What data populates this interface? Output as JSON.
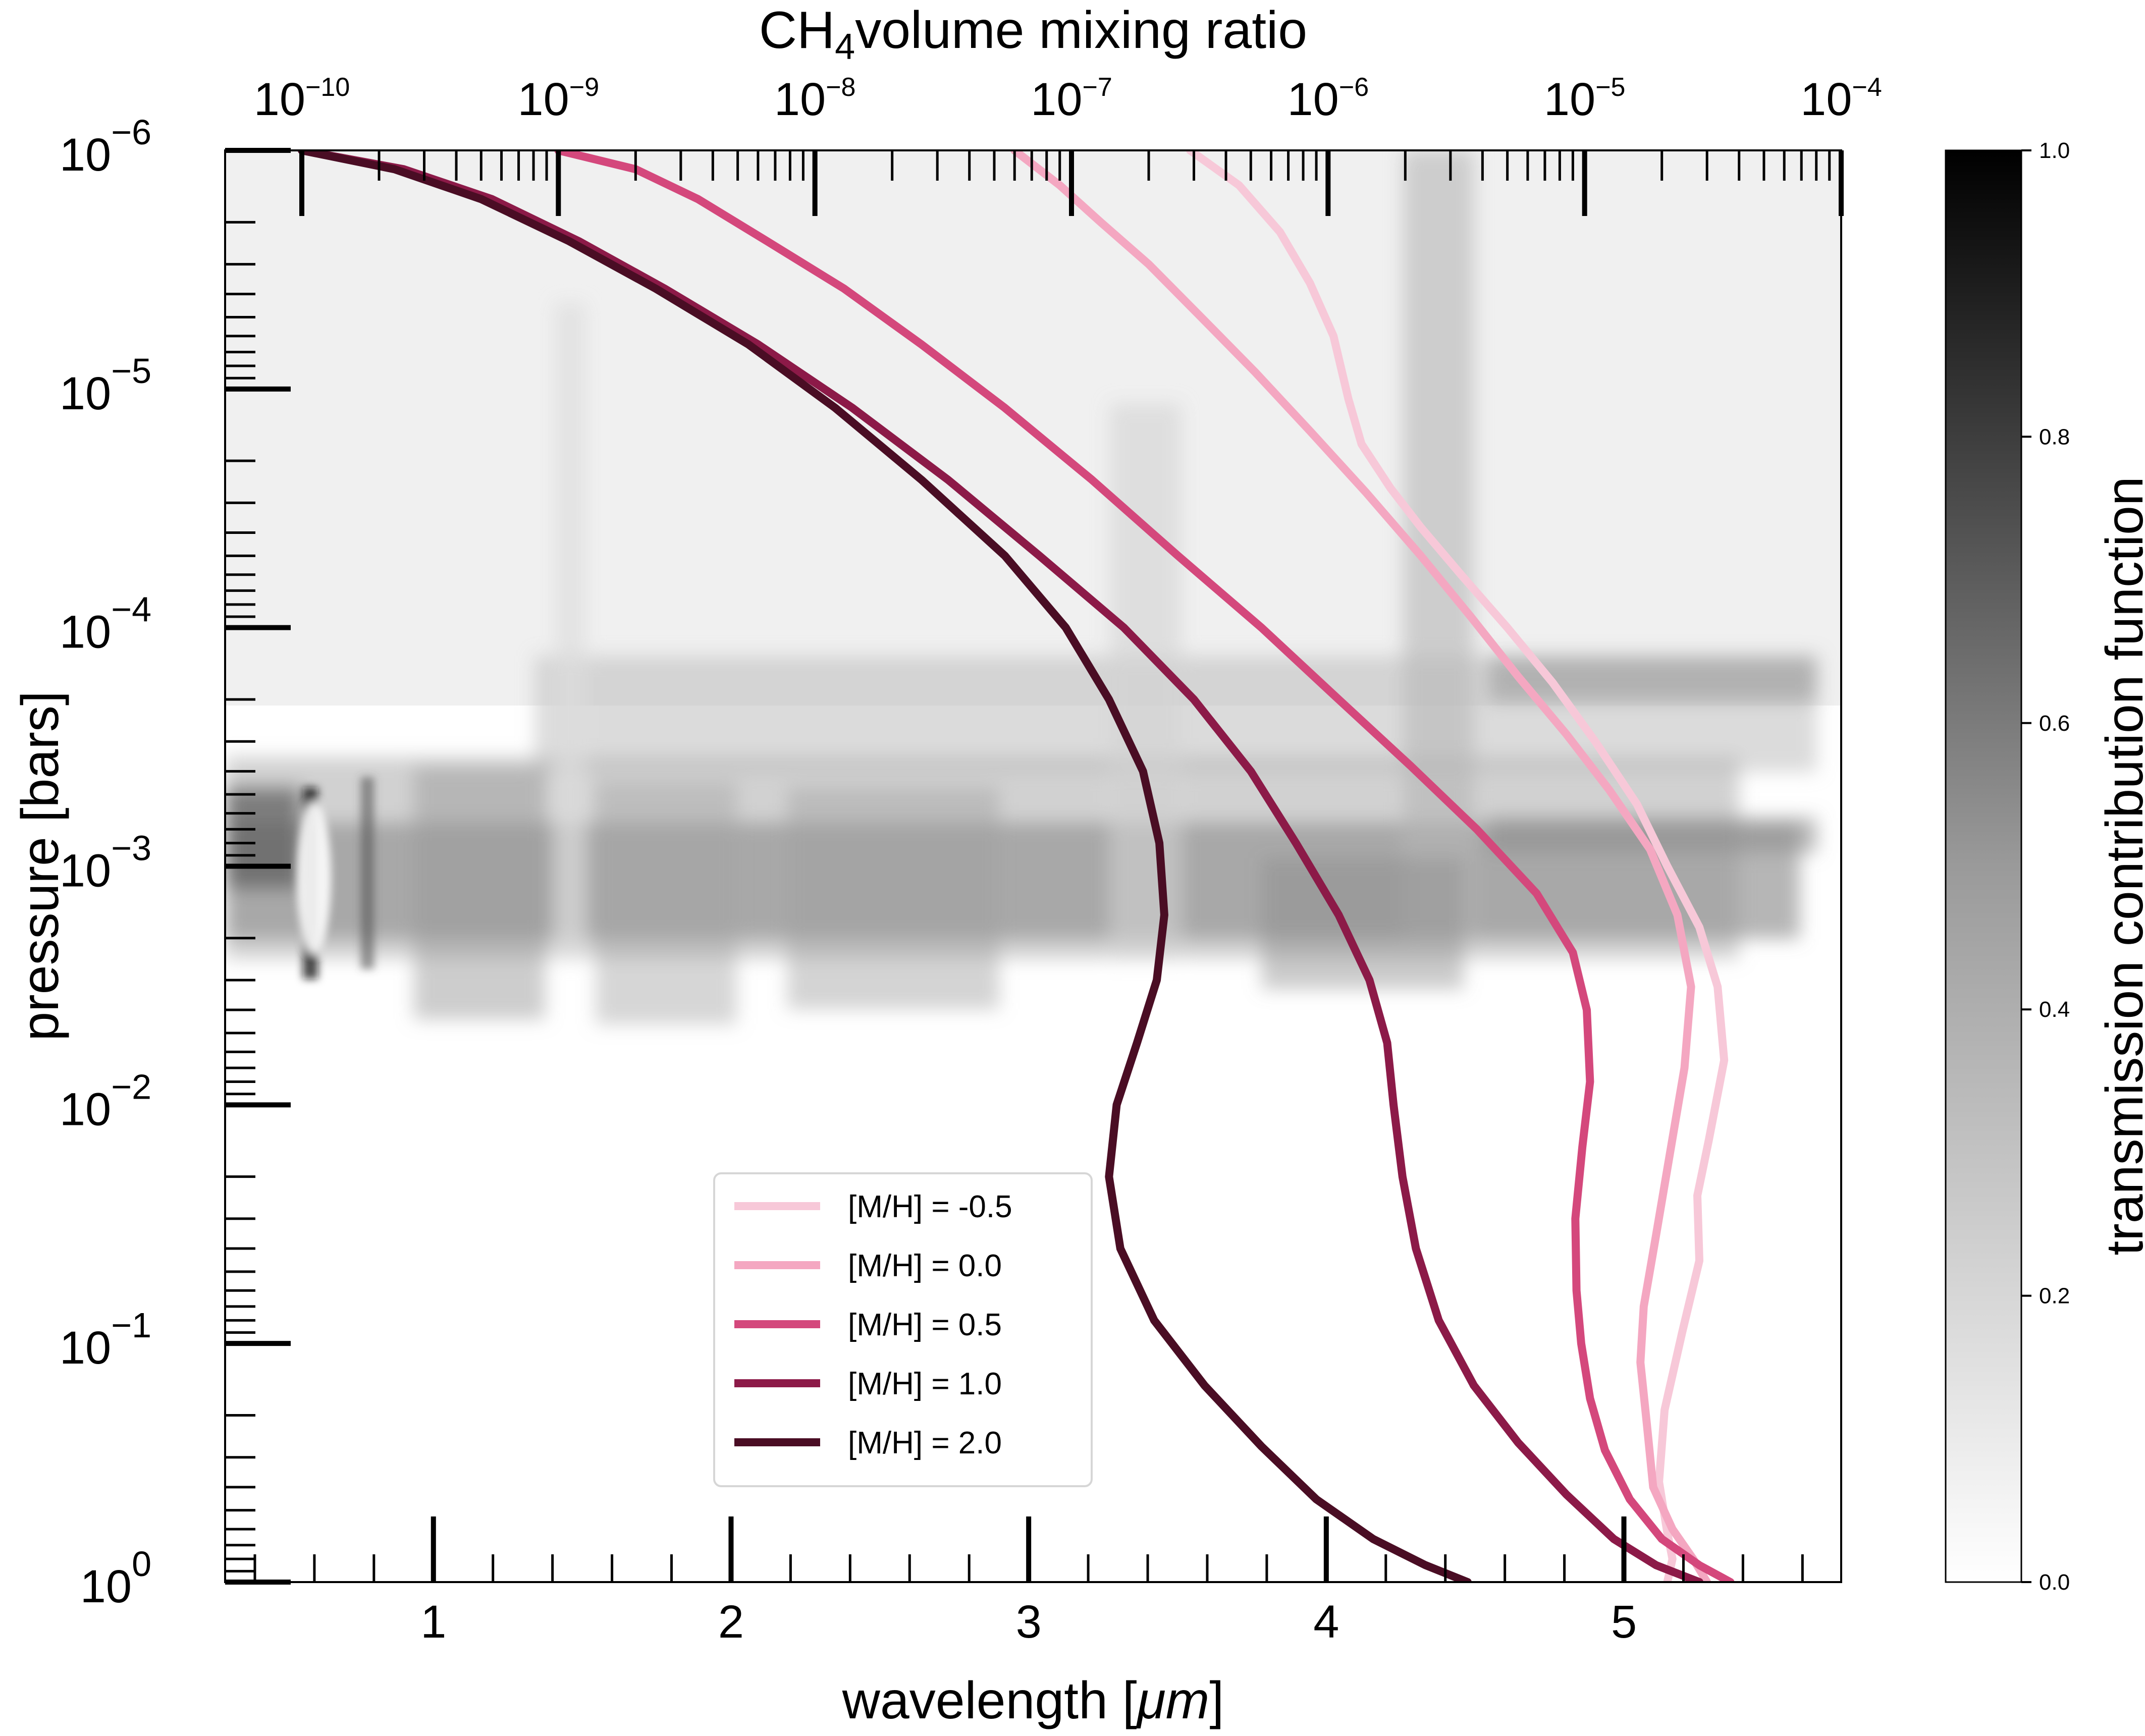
{
  "chart_data": {
    "type": "line",
    "x_axis": {
      "label_text": "wavelength [",
      "label_unit": "μm",
      "label_close": "]",
      "range": [
        0.3,
        5.73
      ],
      "ticks": [
        1,
        2,
        3,
        4,
        5
      ],
      "tick_labels": [
        "1",
        "2",
        "3",
        "4",
        "5"
      ]
    },
    "top_axis": {
      "label_prefix": "CH",
      "label_sub": "4",
      "label_suffix": "volume mixing ratio",
      "scale": "log",
      "range": [
        1e-10,
        0.0001
      ],
      "ticks": [
        1e-10,
        1e-09,
        1e-08,
        1e-07,
        1e-06,
        1e-05,
        0.0001
      ],
      "tick_labels": [
        {
          "base": "10",
          "exp": "−10"
        },
        {
          "base": "10",
          "exp": "−9"
        },
        {
          "base": "10",
          "exp": "−8"
        },
        {
          "base": "10",
          "exp": "−7"
        },
        {
          "base": "10",
          "exp": "−6"
        },
        {
          "base": "10",
          "exp": "−5"
        },
        {
          "base": "10",
          "exp": "−4"
        }
      ]
    },
    "y_axis": {
      "label": "pressure [bars]",
      "scale": "log",
      "inverted": true,
      "range": [
        1e-06,
        1
      ],
      "ticks": [
        1e-06,
        1e-05,
        0.0001,
        0.001,
        0.01,
        0.1,
        1
      ],
      "tick_labels": [
        {
          "base": "10",
          "exp": "−6"
        },
        {
          "base": "10",
          "exp": "−5"
        },
        {
          "base": "10",
          "exp": "−4"
        },
        {
          "base": "10",
          "exp": "−3"
        },
        {
          "base": "10",
          "exp": "−2"
        },
        {
          "base": "10",
          "exp": "−1"
        },
        {
          "base": "10",
          "exp": "0"
        }
      ]
    },
    "colorbar": {
      "label": "transmission contribution function",
      "colormap": "Greys",
      "range": [
        0,
        1
      ],
      "ticks": [
        0.0,
        0.2,
        0.4,
        0.6,
        0.8,
        1.0
      ],
      "tick_labels": [
        "0.0",
        "0.2",
        "0.4",
        "0.6",
        "0.8",
        "1.0"
      ]
    },
    "legend_placement": "lower-center",
    "series": [
      {
        "name": "[M/H] = -0.5",
        "color": "#f7c8d8",
        "points": [
          [
            2.9e-07,
            1e-06
          ],
          [
            4.5e-07,
            1.4e-06
          ],
          [
            6.5e-07,
            2.2e-06
          ],
          [
            8.5e-07,
            3.6e-06
          ],
          [
            1.05e-06,
            6e-06
          ],
          [
            1.2e-06,
            1.1e-05
          ],
          [
            1.35e-06,
            1.7e-05
          ],
          [
            1.75e-06,
            2.6e-05
          ],
          [
            2.3e-06,
            3.8e-05
          ],
          [
            3.3e-06,
            6e-05
          ],
          [
            5e-06,
            0.0001
          ],
          [
            7.5e-06,
            0.00017
          ],
          [
            1.1e-05,
            0.0003
          ],
          [
            1.6e-05,
            0.00055
          ],
          [
            2.1e-05,
            0.001
          ],
          [
            2.8e-05,
            0.0018
          ],
          [
            3.3e-05,
            0.0032
          ],
          [
            3.5e-05,
            0.0065
          ],
          [
            3.05e-05,
            0.014
          ],
          [
            2.75e-05,
            0.024
          ],
          [
            2.8e-05,
            0.045
          ],
          [
            2.4e-05,
            0.09
          ],
          [
            2.05e-05,
            0.19
          ],
          [
            1.95e-05,
            0.38
          ],
          [
            2.1e-05,
            0.62
          ],
          [
            2.2e-05,
            0.8
          ],
          [
            2.1e-05,
            1.0
          ]
        ]
      },
      {
        "name": "[M/H] = 0.0",
        "color": "#f4a7c1",
        "points": [
          [
            6e-08,
            1e-06
          ],
          [
            9e-08,
            1.4e-06
          ],
          [
            1.3e-07,
            2e-06
          ],
          [
            2e-07,
            3e-06
          ],
          [
            3.2e-07,
            5e-06
          ],
          [
            5.2e-07,
            8.5e-06
          ],
          [
            8.5e-07,
            1.5e-05
          ],
          [
            1.4e-06,
            2.7e-05
          ],
          [
            2.3e-06,
            5e-05
          ],
          [
            3.6e-06,
            9e-05
          ],
          [
            5.5e-06,
            0.00016
          ],
          [
            8.5e-06,
            0.00028
          ],
          [
            1.25e-05,
            0.00048
          ],
          [
            1.8e-05,
            0.00085
          ],
          [
            2.3e-05,
            0.0016
          ],
          [
            2.6e-05,
            0.0032
          ],
          [
            2.45e-05,
            0.007
          ],
          [
            2.15e-05,
            0.016
          ],
          [
            1.9e-05,
            0.035
          ],
          [
            1.7e-05,
            0.07
          ],
          [
            1.65e-05,
            0.12
          ],
          [
            1.75e-05,
            0.22
          ],
          [
            1.85e-05,
            0.4
          ],
          [
            2.2e-05,
            0.6
          ],
          [
            2.65e-05,
            0.8
          ],
          [
            3e-05,
            1.0
          ]
        ]
      },
      {
        "name": "[M/H] = 0.5",
        "color": "#d4487c",
        "points": [
          [
            1e-09,
            1e-06
          ],
          [
            2e-09,
            1.2e-06
          ],
          [
            3.5e-09,
            1.6e-06
          ],
          [
            6.5e-09,
            2.4e-06
          ],
          [
            1.3e-08,
            3.8e-06
          ],
          [
            2.6e-08,
            6.5e-06
          ],
          [
            5.5e-08,
            1.2e-05
          ],
          [
            1.2e-07,
            2.4e-05
          ],
          [
            2.6e-07,
            5e-05
          ],
          [
            5.5e-07,
            0.0001
          ],
          [
            1.1e-06,
            0.0002
          ],
          [
            2.1e-06,
            0.00038
          ],
          [
            3.8e-06,
            0.0007
          ],
          [
            6.5e-06,
            0.0013
          ],
          [
            9e-06,
            0.0023
          ],
          [
            1.02e-05,
            0.004
          ],
          [
            1.05e-05,
            0.008
          ],
          [
            9.8e-06,
            0.015
          ],
          [
            9.2e-06,
            0.03
          ],
          [
            9.3e-06,
            0.06
          ],
          [
            9.7e-06,
            0.1
          ],
          [
            1.05e-05,
            0.17
          ],
          [
            1.2e-05,
            0.28
          ],
          [
            1.5e-05,
            0.45
          ],
          [
            2e-05,
            0.66
          ],
          [
            2.8e-05,
            0.85
          ],
          [
            3.7e-05,
            1.0
          ]
        ]
      },
      {
        "name": "[M/H] = 1.0",
        "color": "#8c1a48",
        "points": [
          [
            1e-10,
            1e-06
          ],
          [
            2.5e-10,
            1.2e-06
          ],
          [
            5.5e-10,
            1.6e-06
          ],
          [
            1.2e-09,
            2.4e-06
          ],
          [
            2.6e-09,
            3.8e-06
          ],
          [
            6e-09,
            6.5e-06
          ],
          [
            1.4e-08,
            1.2e-05
          ],
          [
            3.3e-08,
            2.4e-05
          ],
          [
            7.5e-08,
            5e-05
          ],
          [
            1.6e-07,
            0.0001
          ],
          [
            3e-07,
            0.0002
          ],
          [
            5e-07,
            0.0004
          ],
          [
            7.5e-07,
            0.0008
          ],
          [
            1.1e-06,
            0.0016
          ],
          [
            1.45e-06,
            0.003
          ],
          [
            1.7e-06,
            0.0055
          ],
          [
            1.8e-06,
            0.01
          ],
          [
            1.95e-06,
            0.02
          ],
          [
            2.2e-06,
            0.04
          ],
          [
            2.7e-06,
            0.08
          ],
          [
            3.7e-06,
            0.15
          ],
          [
            5.5e-06,
            0.26
          ],
          [
            8.5e-06,
            0.43
          ],
          [
            1.3e-05,
            0.66
          ],
          [
            1.9e-05,
            0.85
          ],
          [
            2.8e-05,
            1.0
          ]
        ]
      },
      {
        "name": "[M/H] = 2.0",
        "color": "#4a0d24",
        "points": [
          [
            1e-10,
            1e-06
          ],
          [
            2.3e-10,
            1.2e-06
          ],
          [
            5e-10,
            1.6e-06
          ],
          [
            1.1e-09,
            2.4e-06
          ],
          [
            2.4e-09,
            3.8e-06
          ],
          [
            5.5e-09,
            6.5e-06
          ],
          [
            1.2e-08,
            1.2e-05
          ],
          [
            2.6e-08,
            2.4e-05
          ],
          [
            5.5e-08,
            5e-05
          ],
          [
            9.5e-08,
            0.0001
          ],
          [
            1.4e-07,
            0.0002
          ],
          [
            1.9e-07,
            0.0004
          ],
          [
            2.2e-07,
            0.0008
          ],
          [
            2.3e-07,
            0.0016
          ],
          [
            2.15e-07,
            0.003
          ],
          [
            1.8e-07,
            0.0055
          ],
          [
            1.5e-07,
            0.01
          ],
          [
            1.4e-07,
            0.02
          ],
          [
            1.55e-07,
            0.04
          ],
          [
            2.1e-07,
            0.08
          ],
          [
            3.3e-07,
            0.15
          ],
          [
            5.5e-07,
            0.27
          ],
          [
            9e-07,
            0.45
          ],
          [
            1.5e-06,
            0.66
          ],
          [
            2.4e-06,
            0.85
          ],
          [
            3.5e-06,
            1.0
          ]
        ]
      }
    ]
  }
}
